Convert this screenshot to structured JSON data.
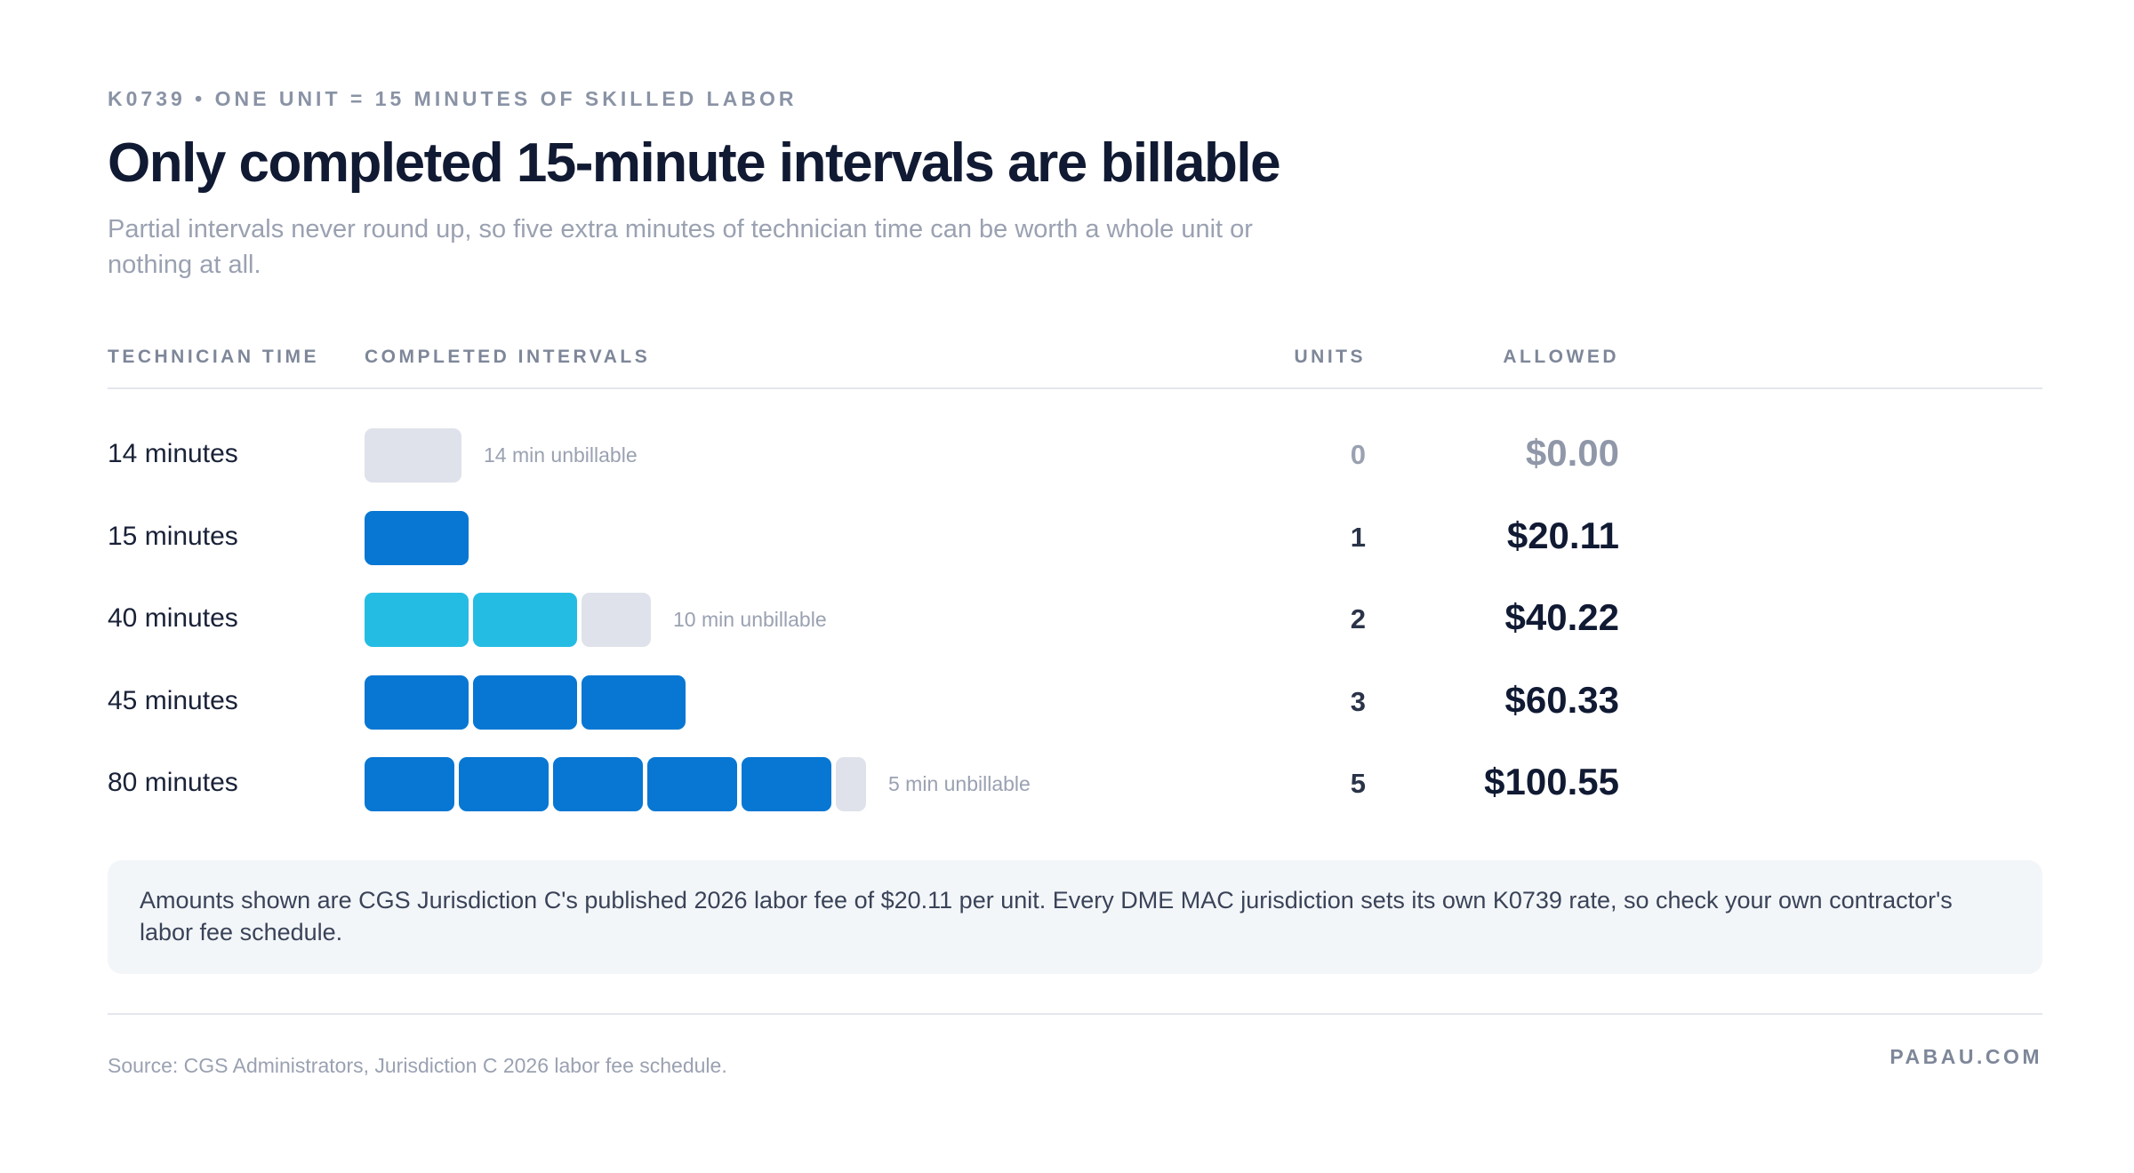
{
  "header": {
    "eyebrow": "K0739 • ONE UNIT = 15 MINUTES OF SKILLED LABOR",
    "title": "Only completed 15-minute intervals are billable",
    "subtitle": "Partial intervals never round up, so five extra minutes of technician time can be worth a whole unit or nothing at all."
  },
  "columns": {
    "time": "TECHNICIAN TIME",
    "intervals": "COMPLETED INTERVALS",
    "units": "UNITS",
    "allowed": "ALLOWED"
  },
  "colors": {
    "full_interval": "#0777d3",
    "highlight_interval": "#25bce3",
    "unbillable_remainder": "#dfe2ea",
    "title": "#111a33"
  },
  "chart_data": {
    "type": "table",
    "interval_minutes": 15,
    "rows": [
      {
        "time": "14 minutes",
        "minutes": 14,
        "units": "0",
        "allowed": "$0.00",
        "unbillable_minutes": 14,
        "unbillable_label": "14 min unbillable",
        "style": "full"
      },
      {
        "time": "15 minutes",
        "minutes": 15,
        "units": "1",
        "allowed": "$20.11",
        "unbillable_minutes": 0,
        "unbillable_label": "",
        "style": "full"
      },
      {
        "time": "40 minutes",
        "minutes": 40,
        "units": "2",
        "allowed": "$40.22",
        "unbillable_minutes": 10,
        "unbillable_label": "10 min unbillable",
        "style": "highlight"
      },
      {
        "time": "45 minutes",
        "minutes": 45,
        "units": "3",
        "allowed": "$60.33",
        "unbillable_minutes": 0,
        "unbillable_label": "",
        "style": "full"
      },
      {
        "time": "80 minutes",
        "minutes": 80,
        "units": "5",
        "allowed": "$100.55",
        "unbillable_minutes": 5,
        "unbillable_label": "5 min unbillable",
        "style": "full"
      }
    ]
  },
  "note": "Amounts shown are CGS Jurisdiction C's published 2026 labor fee of $20.11 per unit. Every DME MAC jurisdiction sets its own K0739 rate, so check your own contractor's labor fee schedule.",
  "footer": {
    "source": "Source: CGS Administrators, Jurisdiction C 2026 labor fee schedule.",
    "brand": "PABAU.COM"
  }
}
